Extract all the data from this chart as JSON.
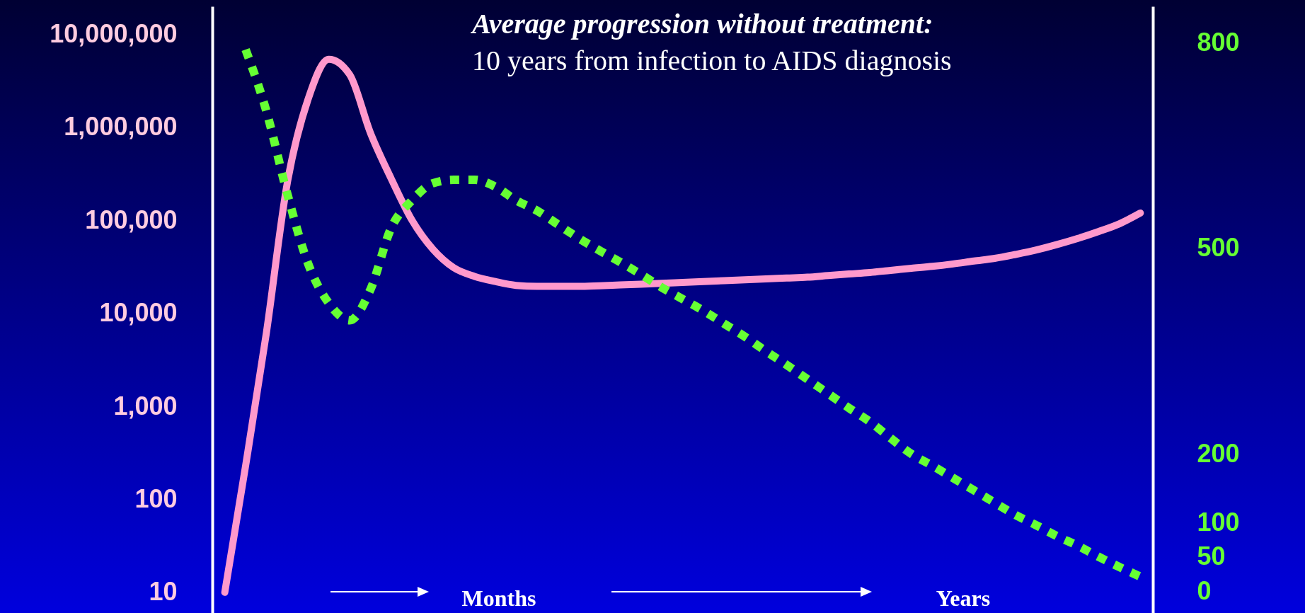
{
  "chart_data": {
    "type": "line",
    "title": "Average progression without treatment:",
    "subtitle": "10 years from infection to AIDS diagnosis",
    "annotations": [
      "Months",
      "Years"
    ],
    "categories": [
      null,
      null,
      null,
      null,
      null,
      null,
      null,
      null,
      null,
      null,
      null,
      null,
      null,
      null,
      null,
      null,
      null,
      null,
      null,
      null,
      null,
      null,
      null,
      null,
      null,
      null,
      null,
      null,
      null,
      null,
      null,
      null,
      null,
      null,
      null,
      null,
      null,
      null,
      null,
      null,
      null,
      null,
      null,
      null,
      null
    ],
    "series": [
      {
        "color": "#ff99cc",
        "line_style": "solid",
        "values": [
          10,
          230,
          6200,
          250000,
          2000000,
          5400000,
          3700000,
          870000,
          280000,
          100000,
          49000,
          31000,
          25000,
          22000,
          20000,
          19500,
          19500,
          19500,
          19800,
          20200,
          20600,
          21000,
          21500,
          22000,
          22500,
          23000,
          23500,
          24000,
          24500,
          25500,
          26500,
          27500,
          29000,
          30500,
          32000,
          34000,
          36500,
          39000,
          43000,
          48000,
          55000,
          64000,
          76000,
          92000,
          120000
        ]
      },
      {
        "color": "#66ff33",
        "line_style": "dotted",
        "axis": "y2",
        "values": [
          null,
          790,
          700,
          580,
          478,
          420,
          395,
          440,
          530,
          570,
          595,
          600,
          600,
          590,
          570,
          555,
          535,
          515,
          497,
          480,
          462,
          443,
          426,
          409,
          390,
          371,
          350,
          330,
          309,
          288,
          267,
          247,
          223,
          200,
          183,
          165,
          147,
          129,
          111,
          96,
          80,
          66,
          50,
          35,
          21
        ]
      }
    ],
    "log": "y",
    "ylim": [
      6,
      20000000
    ],
    "yticks": [
      {
        "value": 10,
        "label": "10"
      },
      {
        "value": 100,
        "label": "100"
      },
      {
        "value": 1000,
        "label": "1,000"
      },
      {
        "value": 10000,
        "label": "10,000"
      },
      {
        "value": 100000,
        "label": "100,000"
      },
      {
        "value": 1000000,
        "label": "1,000,000"
      },
      {
        "value": 10000000,
        "label": "10,000,000"
      }
    ],
    "y2lim": [
      -32,
      853
    ],
    "y2ticks": [
      0,
      50,
      100,
      200,
      500,
      800
    ]
  }
}
